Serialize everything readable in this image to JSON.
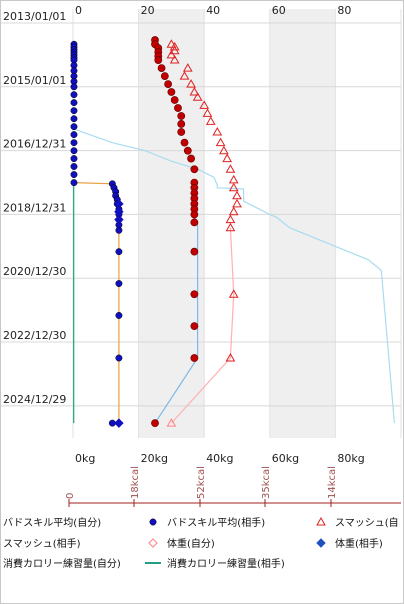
{
  "chart_data": {
    "type": "scatter",
    "orientation": "time-vertical",
    "time_axis": {
      "ticks": [
        "2013/01/01",
        "2015/01/01",
        "2016/12/31",
        "2018/12/31",
        "2020/12/30",
        "2022/12/30",
        "2024/12/29"
      ],
      "range": [
        "2013-01-01",
        "2026-01-01"
      ]
    },
    "top_axis": {
      "ticks": [
        "0",
        "20",
        "40",
        "60",
        "80",
        "10"
      ]
    },
    "x_axis": {
      "ticks": [
        "0kg",
        "20kg",
        "40kg",
        "60kg",
        "80kg"
      ],
      "range": [
        0,
        100
      ]
    },
    "kcal_axis": {
      "ticks": [
        "0",
        "18kcal",
        "52kcal",
        "35kcal",
        "14kcal"
      ]
    },
    "series": [
      {
        "name": "バドスキル平均(自分)",
        "color": "#1010c0",
        "marker": "circle",
        "points": [
          {
            "date": "2013-09-01",
            "x": 0.3
          },
          {
            "date": "2013-10-01",
            "x": 0.3
          },
          {
            "date": "2013-11-01",
            "x": 0.3
          },
          {
            "date": "2013-12-01",
            "x": 0.3
          },
          {
            "date": "2014-01-01",
            "x": 0.3
          },
          {
            "date": "2014-02-01",
            "x": 0.3
          },
          {
            "date": "2014-03-01",
            "x": 0.3
          },
          {
            "date": "2014-05-01",
            "x": 0.3
          },
          {
            "date": "2014-07-01",
            "x": 0.3
          },
          {
            "date": "2014-09-01",
            "x": 0.3
          },
          {
            "date": "2014-11-01",
            "x": 0.3
          },
          {
            "date": "2015-01-01",
            "x": 0.3
          },
          {
            "date": "2015-04-01",
            "x": 0.3
          },
          {
            "date": "2015-07-01",
            "x": 0.3
          },
          {
            "date": "2015-10-01",
            "x": 0.3
          },
          {
            "date": "2016-01-01",
            "x": 0.3
          },
          {
            "date": "2016-04-01",
            "x": 0.3
          },
          {
            "date": "2016-07-01",
            "x": 0.3
          },
          {
            "date": "2016-10-01",
            "x": 0.3
          },
          {
            "date": "2017-01-01",
            "x": 0.3
          },
          {
            "date": "2017-04-01",
            "x": 0.3
          },
          {
            "date": "2017-07-01",
            "x": 0.3
          },
          {
            "date": "2017-10-01",
            "x": 0.3
          },
          {
            "date": "2018-01-01",
            "x": 0.3
          }
        ]
      },
      {
        "name": "バドスキル平均(相手)",
        "color": "#1010c0",
        "marker": "circle",
        "points": [
          {
            "date": "2018-01-15",
            "x": 12
          },
          {
            "date": "2018-03-01",
            "x": 12.5
          },
          {
            "date": "2018-04-15",
            "x": 13
          },
          {
            "date": "2018-06-01",
            "x": 13
          },
          {
            "date": "2018-07-15",
            "x": 13.5
          },
          {
            "date": "2018-09-01",
            "x": 13.5
          },
          {
            "date": "2018-11-01",
            "x": 14
          },
          {
            "date": "2019-01-01",
            "x": 14
          },
          {
            "date": "2019-03-01",
            "x": 14
          },
          {
            "date": "2019-05-01",
            "x": 14
          },
          {
            "date": "2019-07-01",
            "x": 14
          },
          {
            "date": "2020-03-01",
            "x": 14
          },
          {
            "date": "2021-03-01",
            "x": 14
          },
          {
            "date": "2022-03-01",
            "x": 14
          },
          {
            "date": "2023-07-01",
            "x": 14
          },
          {
            "date": "2025-07-15",
            "x": 12
          }
        ]
      },
      {
        "name": "スマッシュ(自分)",
        "color": "#e02020",
        "marker": "triangle",
        "points": [
          {
            "date": "2013-09-01",
            "x": 30
          },
          {
            "date": "2013-10-01",
            "x": 31
          },
          {
            "date": "2013-11-15",
            "x": 31
          },
          {
            "date": "2014-01-01",
            "x": 30
          },
          {
            "date": "2014-03-01",
            "x": 31
          },
          {
            "date": "2014-06-01",
            "x": 35
          },
          {
            "date": "2014-09-01",
            "x": 34
          },
          {
            "date": "2014-12-01",
            "x": 36
          },
          {
            "date": "2015-03-01",
            "x": 37
          },
          {
            "date": "2015-05-01",
            "x": 38
          },
          {
            "date": "2015-08-01",
            "x": 40
          },
          {
            "date": "2015-11-01",
            "x": 41
          },
          {
            "date": "2016-02-01",
            "x": 42
          },
          {
            "date": "2016-06-01",
            "x": 44
          },
          {
            "date": "2016-10-01",
            "x": 45
          },
          {
            "date": "2017-01-01",
            "x": 46
          },
          {
            "date": "2017-04-01",
            "x": 47
          },
          {
            "date": "2017-08-01",
            "x": 48
          },
          {
            "date": "2017-12-01",
            "x": 49
          },
          {
            "date": "2018-03-01",
            "x": 49
          },
          {
            "date": "2018-06-01",
            "x": 50
          },
          {
            "date": "2018-09-01",
            "x": 50
          },
          {
            "date": "2018-12-01",
            "x": 49
          },
          {
            "date": "2019-03-01",
            "x": 48
          },
          {
            "date": "2019-06-01",
            "x": 48
          },
          {
            "date": "2021-07-01",
            "x": 49
          },
          {
            "date": "2023-07-01",
            "x": 48
          }
        ]
      },
      {
        "name": "スマッシュ(相手)",
        "color": "#ff8080",
        "marker": "triangle",
        "points": [
          {
            "date": "2025-07-15",
            "x": 30
          }
        ]
      },
      {
        "name": "体重(自分)",
        "color": "#c00000",
        "marker": "ball",
        "points": [
          {
            "date": "2013-07-15",
            "x": 25
          },
          {
            "date": "2013-09-01",
            "x": 25
          },
          {
            "date": "2013-10-15",
            "x": 26
          },
          {
            "date": "2013-12-01",
            "x": 26
          },
          {
            "date": "2014-01-15",
            "x": 26
          },
          {
            "date": "2014-03-01",
            "x": 26
          },
          {
            "date": "2014-06-01",
            "x": 27
          },
          {
            "date": "2014-09-01",
            "x": 28
          },
          {
            "date": "2014-12-01",
            "x": 29
          },
          {
            "date": "2015-03-01",
            "x": 30
          },
          {
            "date": "2015-06-01",
            "x": 31
          },
          {
            "date": "2015-09-01",
            "x": 32
          },
          {
            "date": "2015-12-01",
            "x": 33
          },
          {
            "date": "2016-03-01",
            "x": 33
          },
          {
            "date": "2016-06-01",
            "x": 33
          },
          {
            "date": "2016-10-01",
            "x": 34
          },
          {
            "date": "2017-01-01",
            "x": 35
          },
          {
            "date": "2017-04-01",
            "x": 36
          },
          {
            "date": "2017-08-01",
            "x": 37
          },
          {
            "date": "2018-01-01",
            "x": 37
          },
          {
            "date": "2018-03-01",
            "x": 37
          },
          {
            "date": "2018-05-01",
            "x": 37
          },
          {
            "date": "2018-07-01",
            "x": 37
          },
          {
            "date": "2018-09-01",
            "x": 37
          },
          {
            "date": "2018-11-01",
            "x": 37
          },
          {
            "date": "2019-01-01",
            "x": 37
          },
          {
            "date": "2019-04-01",
            "x": 37
          },
          {
            "date": "2020-03-01",
            "x": 37
          },
          {
            "date": "2021-07-01",
            "x": 37
          },
          {
            "date": "2022-07-01",
            "x": 37
          },
          {
            "date": "2023-07-01",
            "x": 37
          },
          {
            "date": "2025-07-15",
            "x": 25
          }
        ]
      },
      {
        "name": "体重(相手)",
        "color": "#1010c0",
        "marker": "diamond",
        "points": [
          {
            "date": "2018-09-01",
            "x": 14
          },
          {
            "date": "2018-12-01",
            "x": 14
          },
          {
            "date": "2019-03-01",
            "x": 14
          },
          {
            "date": "2025-07-15",
            "x": 14
          }
        ]
      }
    ],
    "lines": [
      {
        "color": "#e8a040",
        "points": [
          {
            "date": "2018-01-01",
            "x": 0.3
          },
          {
            "date": "2018-01-15",
            "x": 12
          },
          {
            "date": "2018-06-01",
            "x": 13
          },
          {
            "date": "2019-06-01",
            "x": 14
          },
          {
            "date": "2021-03-01",
            "x": 14
          },
          {
            "date": "2023-07-01",
            "x": 14
          },
          {
            "date": "2025-07-15",
            "x": 14
          }
        ]
      },
      {
        "color": "#7fb8e8",
        "points": [
          {
            "date": "2019-04-01",
            "x": 38
          },
          {
            "date": "2023-07-01",
            "x": 38
          },
          {
            "date": "2025-07-15",
            "x": 25
          }
        ]
      },
      {
        "color": "#ffb0b0",
        "points": [
          {
            "date": "2019-06-01",
            "x": 48
          },
          {
            "date": "2021-07-01",
            "x": 49
          },
          {
            "date": "2023-07-01",
            "x": 48
          },
          {
            "date": "2025-07-15",
            "x": 30
          }
        ]
      },
      {
        "color": "#a8dcf0",
        "points": [
          {
            "date": "2016-05-01",
            "x": 0.5
          },
          {
            "date": "2016-10-01",
            "x": 12
          },
          {
            "date": "2017-01-01",
            "x": 22
          },
          {
            "date": "2017-05-01",
            "x": 30
          },
          {
            "date": "2017-08-01",
            "x": 38
          },
          {
            "date": "2017-11-01",
            "x": 43
          },
          {
            "date": "2018-02-01",
            "x": 44
          },
          {
            "date": "2018-03-01",
            "x": 44
          },
          {
            "date": "2018-03-15",
            "x": 52
          },
          {
            "date": "2018-08-01",
            "x": 52
          },
          {
            "date": "2019-01-01",
            "x": 60
          },
          {
            "date": "2019-02-01",
            "x": 62
          },
          {
            "date": "2019-06-01",
            "x": 66
          },
          {
            "date": "2019-09-01",
            "x": 72
          },
          {
            "date": "2020-01-01",
            "x": 80
          },
          {
            "date": "2020-06-01",
            "x": 90
          },
          {
            "date": "2020-10-01",
            "x": 94
          },
          {
            "date": "2025-07-15",
            "x": 98
          }
        ]
      },
      {
        "color": "#20a080",
        "points": [
          {
            "date": "2018-01-01",
            "x": 0.2
          },
          {
            "date": "2025-07-15",
            "x": 0.2
          }
        ]
      }
    ]
  },
  "legend": [
    {
      "label": "バドスキル平均(自分)",
      "color": "#1010c0",
      "marker": "none"
    },
    {
      "label": "バドスキル平均(相手)",
      "color": "#1010c0",
      "marker": "circle"
    },
    {
      "label": "スマッシュ(自",
      "color": "#e02020",
      "marker": "triangle"
    },
    {
      "label": "スマッシュ(相手)",
      "color": "#e02020",
      "marker": "none"
    },
    {
      "label": "体重(自分)",
      "color": "#ff8080",
      "marker": "diamond-open"
    },
    {
      "label": "体重(相手)",
      "color": "#2050c0",
      "marker": "diamond"
    },
    {
      "label": "消費カロリー練習量(自分)",
      "color": "#20a080",
      "marker": "none"
    },
    {
      "label": "消費カロリー練習量(相手)",
      "color": "#20a080",
      "marker": "dash"
    }
  ]
}
